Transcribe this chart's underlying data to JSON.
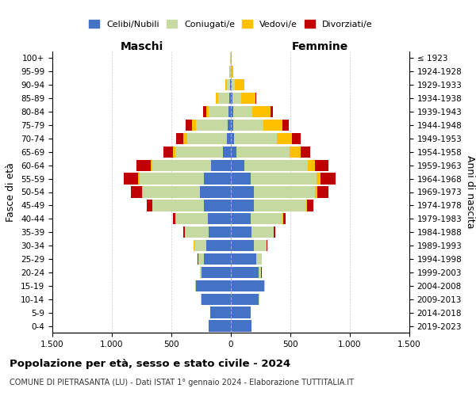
{
  "age_groups": [
    "0-4",
    "5-9",
    "10-14",
    "15-19",
    "20-24",
    "25-29",
    "30-34",
    "35-39",
    "40-44",
    "45-49",
    "50-54",
    "55-59",
    "60-64",
    "65-69",
    "70-74",
    "75-79",
    "80-84",
    "85-89",
    "90-94",
    "95-99",
    "100+"
  ],
  "birth_years": [
    "2019-2023",
    "2014-2018",
    "2009-2013",
    "2004-2008",
    "1999-2003",
    "1994-1998",
    "1989-1993",
    "1984-1988",
    "1979-1983",
    "1974-1978",
    "1969-1973",
    "1964-1968",
    "1959-1963",
    "1954-1958",
    "1949-1953",
    "1944-1948",
    "1939-1943",
    "1934-1938",
    "1929-1933",
    "1924-1928",
    "≤ 1923"
  ],
  "male": {
    "celibi": [
      185,
      175,
      250,
      295,
      245,
      230,
      205,
      190,
      195,
      230,
      260,
      230,
      170,
      70,
      35,
      25,
      20,
      15,
      5,
      3,
      2
    ],
    "coniugati": [
      0,
      0,
      2,
      5,
      15,
      45,
      105,
      195,
      270,
      430,
      480,
      540,
      490,
      400,
      330,
      270,
      170,
      95,
      30,
      5,
      2
    ],
    "vedovi": [
      0,
      0,
      0,
      0,
      1,
      1,
      1,
      1,
      2,
      3,
      5,
      10,
      15,
      20,
      35,
      30,
      20,
      15,
      10,
      3,
      1
    ],
    "divorziati": [
      0,
      0,
      0,
      1,
      1,
      2,
      5,
      15,
      20,
      45,
      95,
      120,
      120,
      80,
      60,
      55,
      25,
      5,
      2,
      0,
      0
    ]
  },
  "female": {
    "nubili": [
      170,
      165,
      235,
      280,
      235,
      210,
      190,
      175,
      165,
      190,
      195,
      165,
      115,
      45,
      25,
      20,
      20,
      15,
      5,
      3,
      2
    ],
    "coniugate": [
      0,
      0,
      2,
      5,
      20,
      50,
      110,
      185,
      270,
      440,
      510,
      555,
      530,
      450,
      360,
      250,
      160,
      70,
      25,
      5,
      1
    ],
    "vedove": [
      0,
      0,
      0,
      0,
      1,
      1,
      2,
      3,
      5,
      10,
      20,
      30,
      60,
      90,
      130,
      160,
      150,
      120,
      80,
      15,
      2
    ],
    "divorziate": [
      0,
      0,
      0,
      1,
      1,
      2,
      5,
      10,
      20,
      55,
      95,
      130,
      115,
      80,
      70,
      55,
      25,
      10,
      2,
      0,
      0
    ]
  },
  "color_celibi": "#4472c4",
  "color_coniugati": "#c5d9a0",
  "color_vedovi": "#ffc000",
  "color_divorziati": "#c00000",
  "title": "Popolazione per età, sesso e stato civile - 2024",
  "subtitle": "COMUNE DI PIETRASANTA (LU) - Dati ISTAT 1° gennaio 2024 - Elaborazione TUTTITALIA.IT",
  "xlabel_left": "Maschi",
  "xlabel_right": "Femmine",
  "ylabel_left": "Fasce di età",
  "ylabel_right": "Anni di nascita",
  "xlim": 1500,
  "xticks": [
    -1500,
    -1000,
    -500,
    0,
    500,
    1000,
    1500
  ],
  "xticklabels": [
    "1.500",
    "1.000",
    "500",
    "0",
    "500",
    "1.000",
    "1.500"
  ],
  "bg_color": "#ffffff",
  "grid_color": "#cccccc"
}
